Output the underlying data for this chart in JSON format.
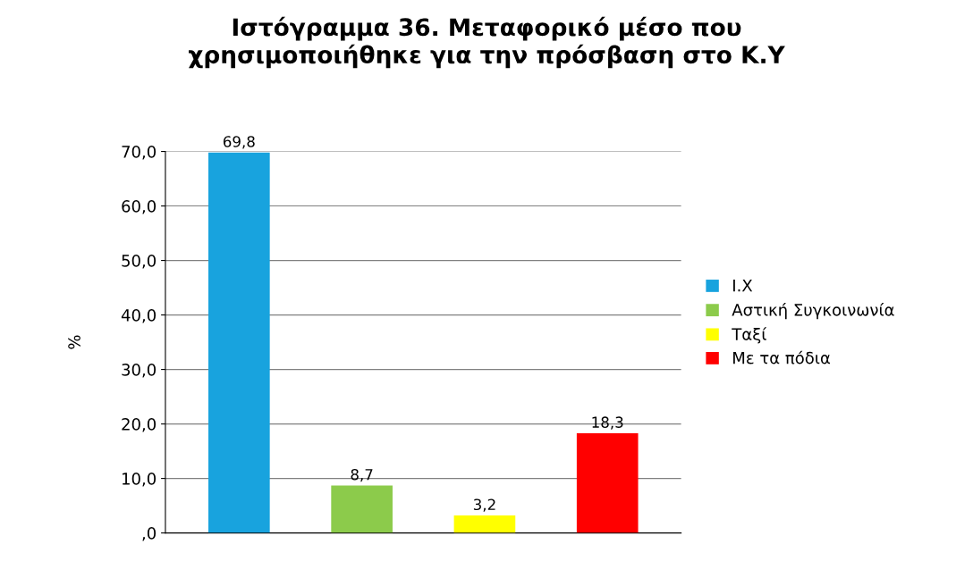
{
  "chart_data": {
    "type": "bar",
    "title": "Ιστόγραμμα 36. Μεταφορικό μέσο που\nχρησιμοποιήθηκε για την πρόσβαση στο Κ.Υ",
    "ylabel": "%",
    "categories": [
      null,
      null,
      null,
      null
    ],
    "series": [
      {
        "name": "Ι.Χ",
        "color": "#18a3de",
        "values": [
          69.8,
          null,
          null,
          null
        ],
        "value_labels": [
          "69,8",
          null,
          null,
          null
        ]
      },
      {
        "name": "Αστική Συγκοινωνία",
        "color": "#8ccb4b",
        "values": [
          null,
          8.7,
          null,
          null
        ],
        "value_labels": [
          null,
          "8,7",
          null,
          null
        ]
      },
      {
        "name": "Ταξί",
        "color": "#ffff00",
        "values": [
          null,
          null,
          3.2,
          null
        ],
        "value_labels": [
          null,
          null,
          "3,2",
          null
        ]
      },
      {
        "name": "Με τα πόδια",
        "color": "#ff0000",
        "values": [
          null,
          null,
          null,
          18.3
        ],
        "value_labels": [
          null,
          null,
          null,
          "18,3"
        ]
      }
    ],
    "ylim": [
      0,
      70
    ],
    "yticks": [
      {
        "value": 0,
        "label": ",0"
      },
      {
        "value": 10,
        "label": "10,0"
      },
      {
        "value": 20,
        "label": "20,0"
      },
      {
        "value": 30,
        "label": "30,0"
      },
      {
        "value": 40,
        "label": "40,0"
      },
      {
        "value": 50,
        "label": "50,0"
      },
      {
        "value": 60,
        "label": "60,0"
      },
      {
        "value": 70,
        "label": "70,0"
      }
    ],
    "grid": "y",
    "legend": "right"
  }
}
